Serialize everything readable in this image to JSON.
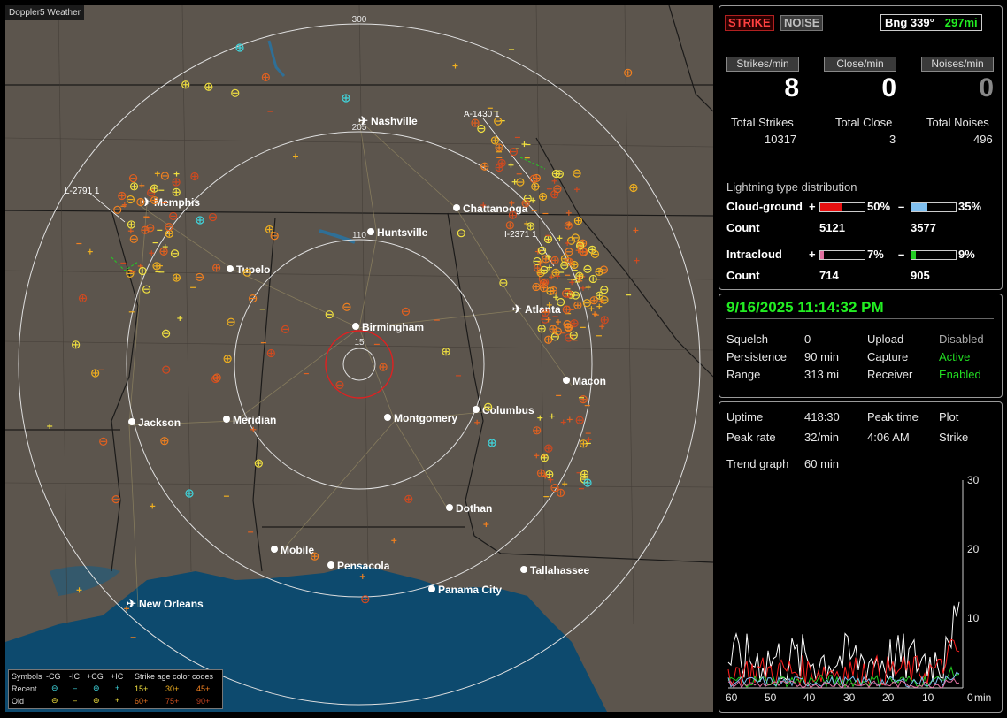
{
  "app": {
    "title": "Doppler5 Weather"
  },
  "map": {
    "range_rings": [
      "300",
      "205",
      "110",
      "15"
    ],
    "cities": [
      {
        "name": "Nashville",
        "airport": true
      },
      {
        "name": "Memphis",
        "airport": true
      },
      {
        "name": "Chattanooga",
        "airport": false
      },
      {
        "name": "Huntsville",
        "airport": false
      },
      {
        "name": "Tupelo",
        "airport": false
      },
      {
        "name": "Birmingham",
        "airport": false
      },
      {
        "name": "Atlanta",
        "airport": true
      },
      {
        "name": "Macon",
        "airport": false
      },
      {
        "name": "Jackson",
        "airport": false
      },
      {
        "name": "Meridian",
        "airport": false
      },
      {
        "name": "Montgomery",
        "airport": false
      },
      {
        "name": "Columbus",
        "airport": false
      },
      {
        "name": "Dothan",
        "airport": false
      },
      {
        "name": "Mobile",
        "airport": false
      },
      {
        "name": "Pensacola",
        "airport": false
      },
      {
        "name": "Tallahassee",
        "airport": false
      },
      {
        "name": "Panama City",
        "airport": false
      },
      {
        "name": "New Orleans",
        "airport": true
      }
    ],
    "storm_tags": [
      "A-1430 1",
      "L-2791 1",
      "I-2371 1"
    ]
  },
  "legend": {
    "symbols_label": "Symbols",
    "types": [
      "-CG",
      "-IC",
      "+CG",
      "+IC"
    ],
    "recent_label": "Recent",
    "old_label": "Old",
    "age_title": "Strike age color codes",
    "ages_recent": [
      "15+",
      "30+",
      "45+"
    ],
    "ages_old": [
      "60+",
      "75+",
      "90+"
    ]
  },
  "status": {
    "strike_btn": "STRIKE",
    "noise_btn": "NOISE",
    "bearing": "Bng 339°",
    "distance": "297mi",
    "headers": [
      "Strikes/min",
      "Close/min",
      "Noises/min"
    ],
    "rates": [
      "8",
      "0",
      "0"
    ],
    "totals_labels": [
      "Total Strikes",
      "Total Close",
      "Total Noises"
    ],
    "totals": [
      "10317",
      "3",
      "496"
    ]
  },
  "distribution": {
    "title": "Lightning type distribution",
    "cg_label": "Cloud-ground",
    "ic_label": "Intracloud",
    "count_label": "Count",
    "plus": "+",
    "minus": "–",
    "cg_pos_pct": "50%",
    "cg_neg_pct": "35%",
    "ic_pos_pct": "7%",
    "ic_neg_pct": "9%",
    "cg_pos_count": "5121",
    "cg_neg_count": "3577",
    "ic_pos_count": "714",
    "ic_neg_count": "905",
    "cg_pos_frac": 0.5,
    "cg_neg_frac": 0.35,
    "ic_pos_frac": 0.07,
    "ic_neg_frac": 0.09
  },
  "settings": {
    "datetime": "9/16/2025 11:14:32 PM",
    "rows": [
      [
        "Squelch",
        "0",
        "Upload",
        "Disabled"
      ],
      [
        "Persistence",
        "90 min",
        "Capture",
        "Active"
      ],
      [
        "Range",
        "313 mi",
        "Receiver",
        "Enabled"
      ]
    ]
  },
  "trend": {
    "uptime_label": "Uptime",
    "uptime": "418:30",
    "peak_time_label": "Peak time",
    "plot_label": "Plot",
    "peak_rate_label": "Peak rate",
    "peak_rate": "32/min",
    "peak_time": "4:06 AM",
    "plot": "Strike",
    "trend_label": "Trend graph",
    "trend_window": "60 min",
    "y_ticks": [
      "30",
      "20",
      "10",
      "0"
    ],
    "x_ticks": [
      "60",
      "50",
      "40",
      "30",
      "20",
      "10",
      "0"
    ],
    "x_unit": "min"
  },
  "colors": {
    "map_land": "#5c554d",
    "water": "#0d4a6e",
    "accent_green": "#22ee22",
    "strike_red": "#ff4040"
  }
}
